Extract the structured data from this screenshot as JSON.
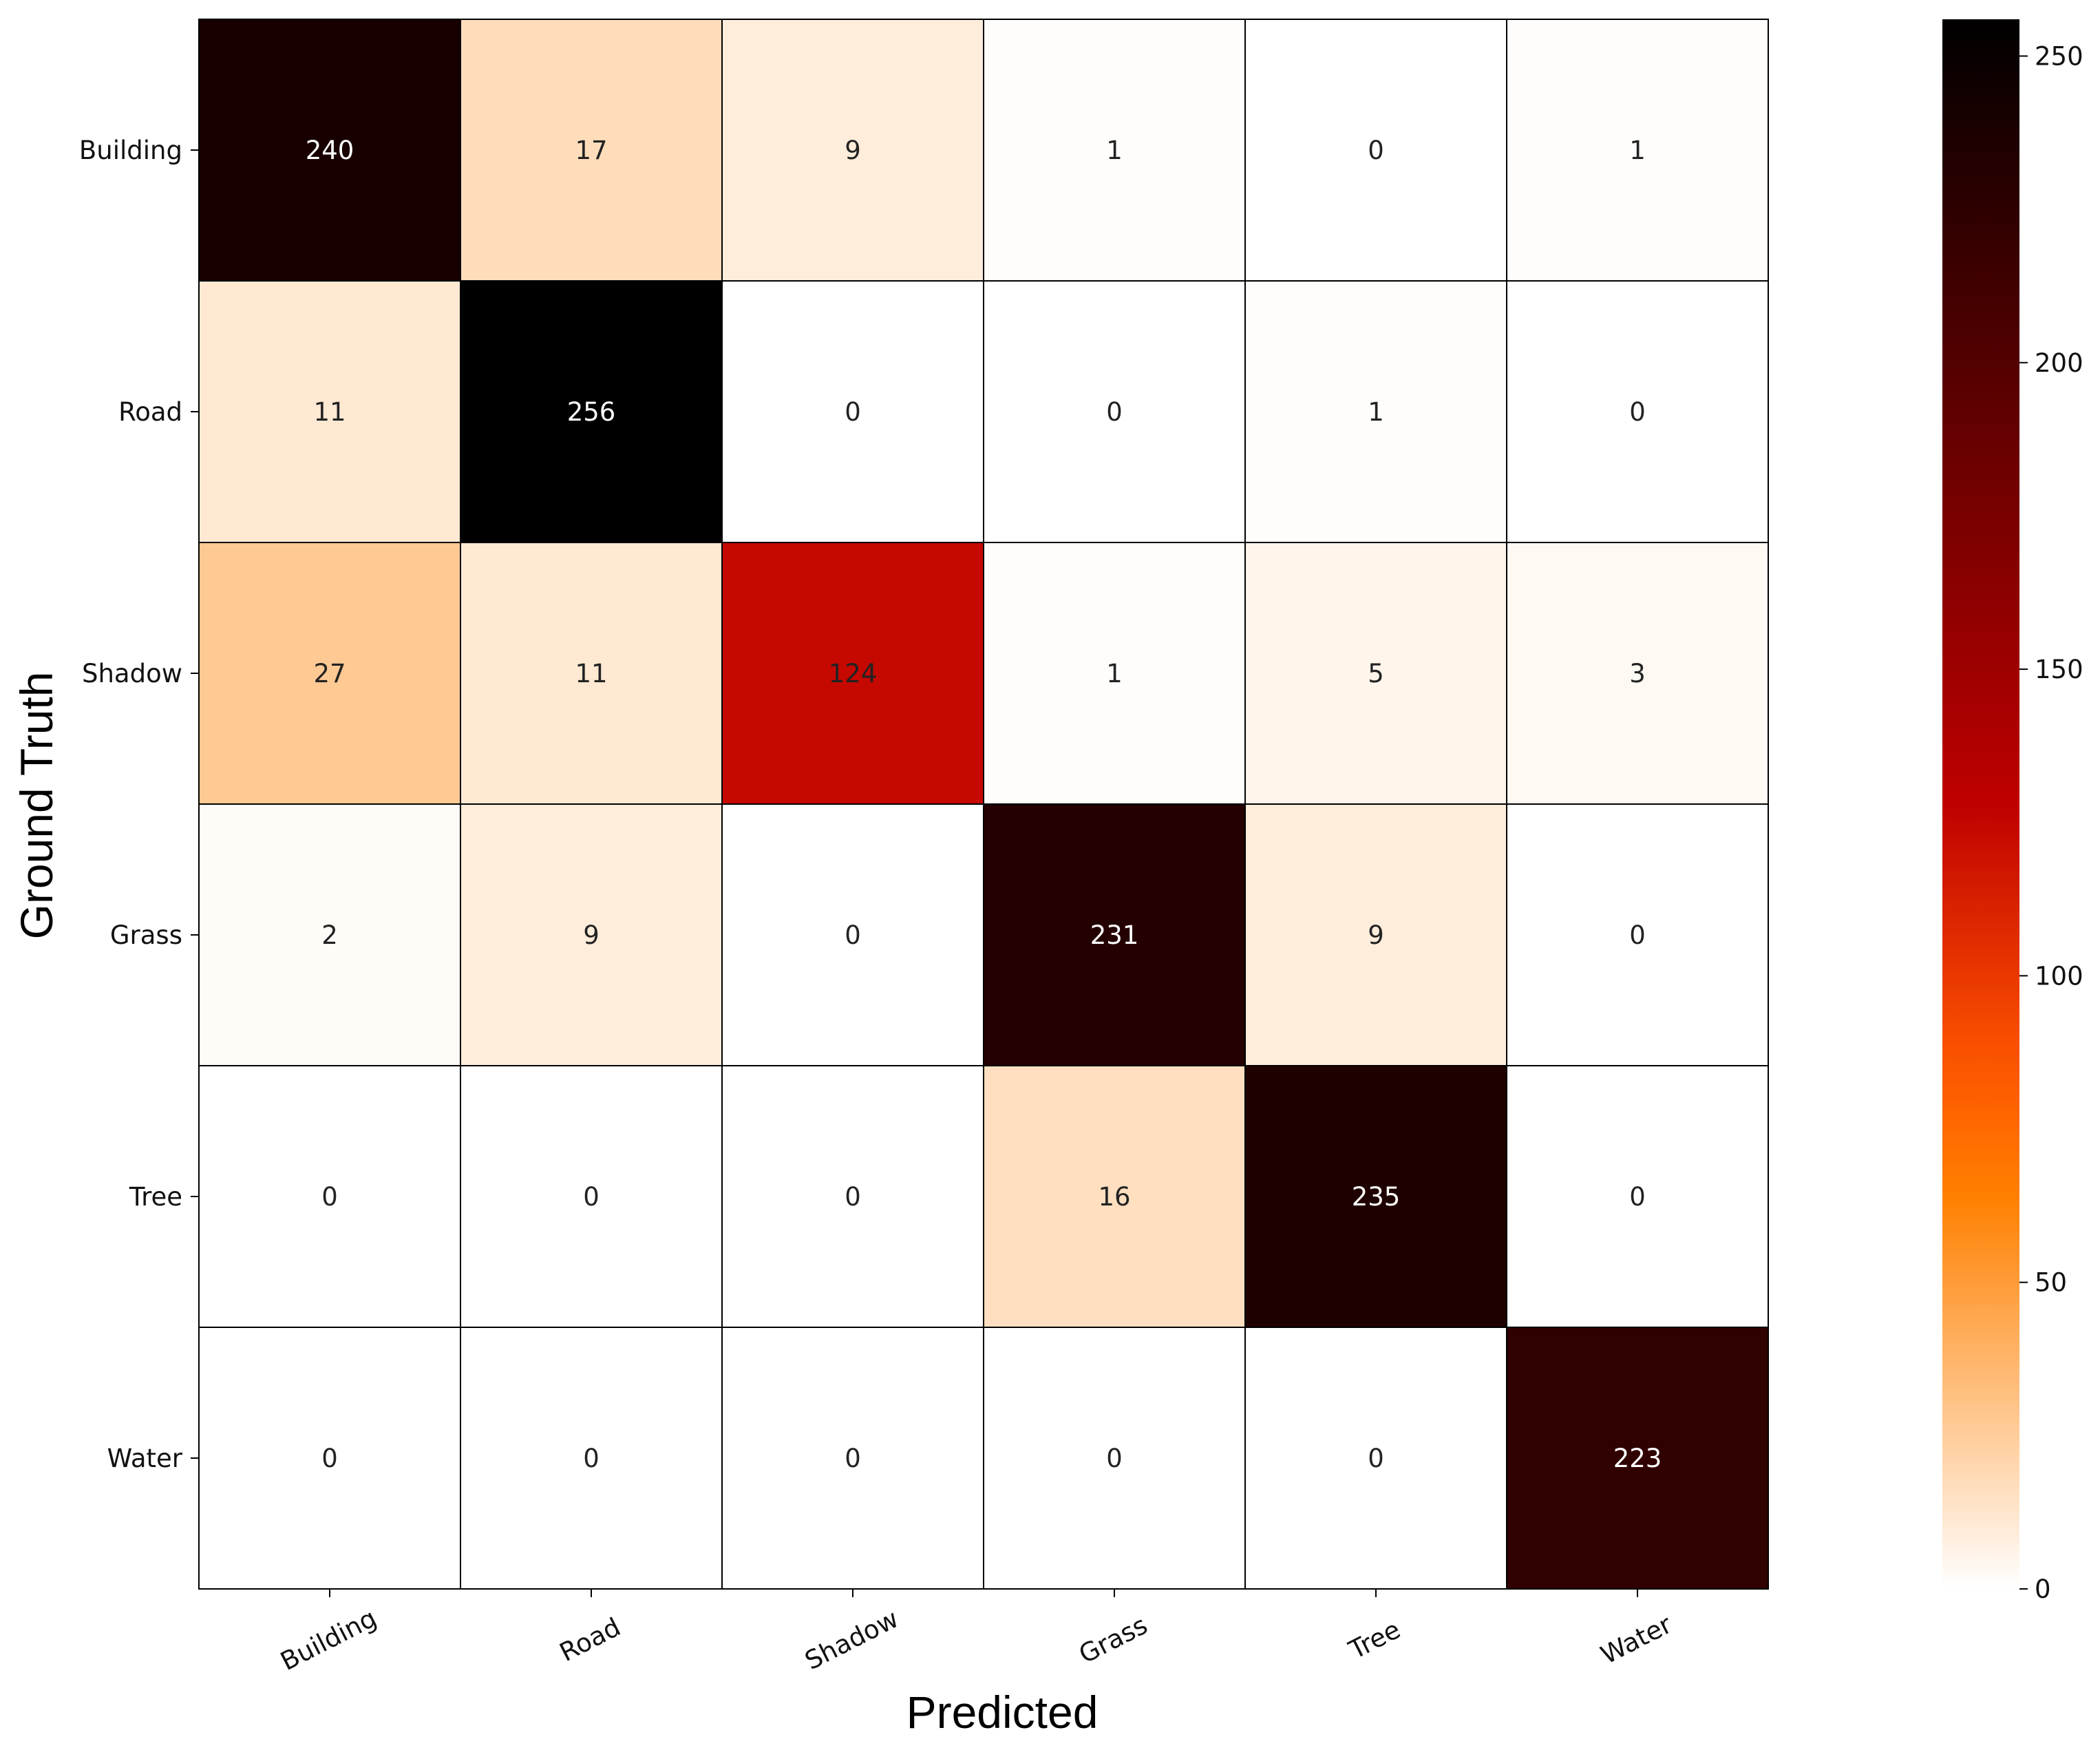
{
  "chart_data": {
    "type": "heatmap",
    "xlabel": "Predicted",
    "ylabel": "Ground Truth",
    "x_categories": [
      "Building",
      "Road",
      "Shadow",
      "Grass",
      "Tree",
      "Water"
    ],
    "y_categories": [
      "Building",
      "Road",
      "Shadow",
      "Grass",
      "Tree",
      "Water"
    ],
    "matrix": [
      [
        240,
        17,
        9,
        1,
        0,
        1
      ],
      [
        11,
        256,
        0,
        0,
        1,
        0
      ],
      [
        27,
        11,
        124,
        1,
        5,
        3
      ],
      [
        2,
        9,
        0,
        231,
        9,
        0
      ],
      [
        0,
        0,
        0,
        16,
        235,
        0
      ],
      [
        0,
        0,
        0,
        0,
        0,
        223
      ]
    ],
    "colorbar": {
      "min": 0,
      "max": 256,
      "ticks": [
        0,
        50,
        100,
        150,
        200,
        250
      ],
      "colormap": "gist_heat_r"
    },
    "grid": true
  }
}
